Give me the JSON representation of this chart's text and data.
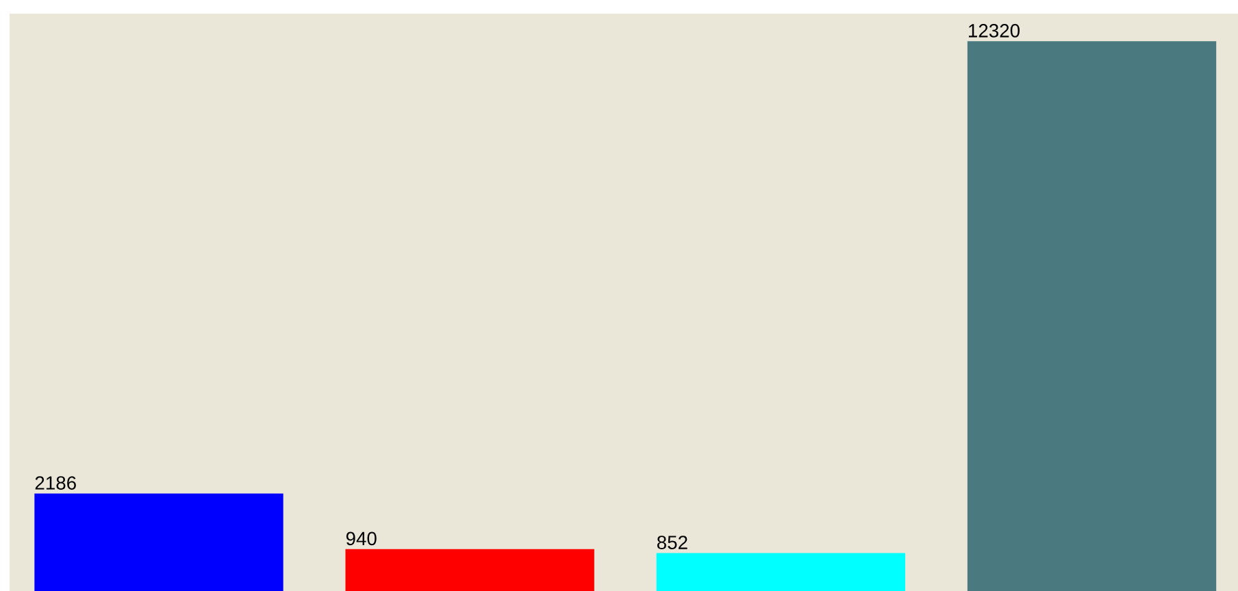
{
  "chart_data": {
    "type": "bar",
    "categories": [
      null,
      null,
      null,
      null
    ],
    "values": [
      2186,
      940,
      852,
      12320
    ],
    "colors": [
      "#0000ff",
      "#ff0000",
      "#00ffff",
      "#4a7a80"
    ],
    "data_labels": true,
    "tick_labels": false
  }
}
